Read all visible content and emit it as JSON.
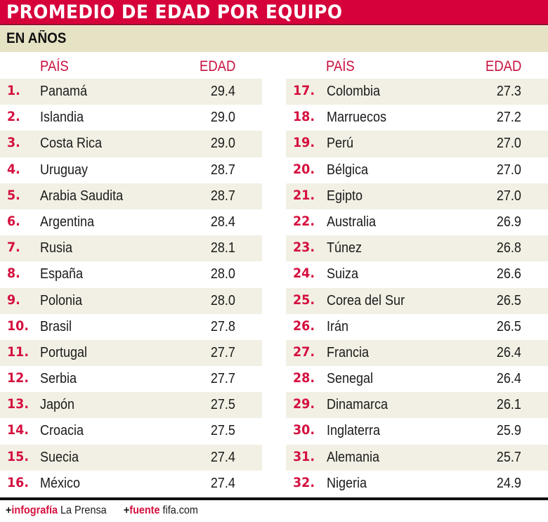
{
  "header": {
    "title": "PROMEDIO DE EDAD POR EQUIPO",
    "subtitle": "EN AÑOS"
  },
  "columns": {
    "country_label": "PAÍS",
    "age_label": "EDAD"
  },
  "left": [
    {
      "rank": "1.",
      "country": "Panamá",
      "age": "29.4"
    },
    {
      "rank": "2.",
      "country": "Islandia",
      "age": "29.0"
    },
    {
      "rank": "3.",
      "country": "Costa Rica",
      "age": "29.0"
    },
    {
      "rank": "4.",
      "country": "Uruguay",
      "age": "28.7"
    },
    {
      "rank": "5.",
      "country": "Arabia Saudita",
      "age": "28.7"
    },
    {
      "rank": "6.",
      "country": "Argentina",
      "age": "28.4"
    },
    {
      "rank": "7.",
      "country": "Rusia",
      "age": "28.1"
    },
    {
      "rank": "8.",
      "country": "España",
      "age": "28.0"
    },
    {
      "rank": "9.",
      "country": "Polonia",
      "age": "28.0"
    },
    {
      "rank": "10.",
      "country": "Brasil",
      "age": "27.8"
    },
    {
      "rank": "11.",
      "country": "Portugal",
      "age": "27.7"
    },
    {
      "rank": "12.",
      "country": "Serbia",
      "age": "27.7"
    },
    {
      "rank": "13.",
      "country": "Japón",
      "age": "27.5"
    },
    {
      "rank": "14.",
      "country": "Croacia",
      "age": "27.5"
    },
    {
      "rank": "15.",
      "country": "Suecia",
      "age": "27.4"
    },
    {
      "rank": "16.",
      "country": "México",
      "age": "27.4"
    }
  ],
  "right": [
    {
      "rank": "17.",
      "country": "Colombia",
      "age": "27.3"
    },
    {
      "rank": "18.",
      "country": "Marruecos",
      "age": "27.2"
    },
    {
      "rank": "19.",
      "country": "Perú",
      "age": "27.0"
    },
    {
      "rank": "20.",
      "country": "Bélgica",
      "age": "27.0"
    },
    {
      "rank": "21.",
      "country": "Egipto",
      "age": "27.0"
    },
    {
      "rank": "22.",
      "country": "Australia",
      "age": "26.9"
    },
    {
      "rank": "23.",
      "country": "Túnez",
      "age": "26.8"
    },
    {
      "rank": "24.",
      "country": "Suiza",
      "age": "26.6"
    },
    {
      "rank": "25.",
      "country": "Corea del Sur",
      "age": "26.5"
    },
    {
      "rank": "26.",
      "country": "Irán",
      "age": "26.5"
    },
    {
      "rank": "27.",
      "country": "Francia",
      "age": "26.4"
    },
    {
      "rank": "28.",
      "country": "Senegal",
      "age": "26.4"
    },
    {
      "rank": "29.",
      "country": "Dinamarca",
      "age": "26.1"
    },
    {
      "rank": "30.",
      "country": "Inglaterra",
      "age": "25.9"
    },
    {
      "rank": "31.",
      "country": "Alemania",
      "age": "25.7"
    },
    {
      "rank": "32.",
      "country": "Nigeria",
      "age": "24.9"
    }
  ],
  "footer": {
    "plus": "+",
    "infografia_label": "infografía",
    "infografia_value": "La Prensa",
    "fuente_label": "fuente",
    "fuente_value": "fifa.com"
  },
  "colors": {
    "accent_red": "#d6003b",
    "band_beige": "#e6e2c4",
    "stripe_beige": "#f2f0e4",
    "text": "#1a1a1a"
  },
  "chart_data": {
    "type": "table",
    "title": "PROMEDIO DE EDAD POR EQUIPO",
    "subtitle": "EN AÑOS",
    "columns": [
      "#",
      "PAÍS",
      "EDAD"
    ],
    "rows": [
      [
        1,
        "Panamá",
        29.4
      ],
      [
        2,
        "Islandia",
        29.0
      ],
      [
        3,
        "Costa Rica",
        29.0
      ],
      [
        4,
        "Uruguay",
        28.7
      ],
      [
        5,
        "Arabia Saudita",
        28.7
      ],
      [
        6,
        "Argentina",
        28.4
      ],
      [
        7,
        "Rusia",
        28.1
      ],
      [
        8,
        "España",
        28.0
      ],
      [
        9,
        "Polonia",
        28.0
      ],
      [
        10,
        "Brasil",
        27.8
      ],
      [
        11,
        "Portugal",
        27.7
      ],
      [
        12,
        "Serbia",
        27.7
      ],
      [
        13,
        "Japón",
        27.5
      ],
      [
        14,
        "Croacia",
        27.5
      ],
      [
        15,
        "Suecia",
        27.4
      ],
      [
        16,
        "México",
        27.4
      ],
      [
        17,
        "Colombia",
        27.3
      ],
      [
        18,
        "Marruecos",
        27.2
      ],
      [
        19,
        "Perú",
        27.0
      ],
      [
        20,
        "Bélgica",
        27.0
      ],
      [
        21,
        "Egipto",
        27.0
      ],
      [
        22,
        "Australia",
        26.9
      ],
      [
        23,
        "Túnez",
        26.8
      ],
      [
        24,
        "Suiza",
        26.6
      ],
      [
        25,
        "Corea del Sur",
        26.5
      ],
      [
        26,
        "Irán",
        26.5
      ],
      [
        27,
        "Francia",
        26.4
      ],
      [
        28,
        "Senegal",
        26.4
      ],
      [
        29,
        "Dinamarca",
        26.1
      ],
      [
        30,
        "Inglaterra",
        25.9
      ],
      [
        31,
        "Alemania",
        25.7
      ],
      [
        32,
        "Nigeria",
        24.9
      ]
    ],
    "source": "fifa.com",
    "credit": "La Prensa"
  }
}
